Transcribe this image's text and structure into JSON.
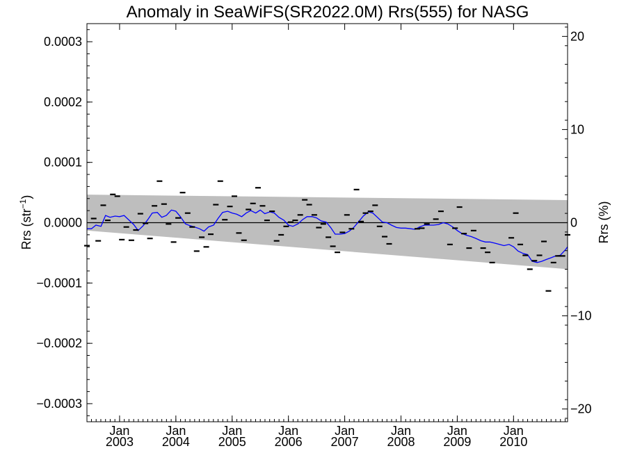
{
  "chart_data": {
    "type": "line",
    "title": "Anomaly in SeaWiFS(SR2022.0M) Rrs(555) for NASG",
    "ylabel": "Rrs (str",
    "ylabel_sup": "−1",
    "ylabel_close": ")",
    "y2label": "Rrs (%)",
    "xlabel": "",
    "xlim": [
      2002.42,
      2010.96
    ],
    "ylim": [
      -0.00033,
      0.00033
    ],
    "y2lim": [
      -21.37,
      21.37
    ],
    "grid": false,
    "legend": "none",
    "colors": {
      "line": "#0000ff",
      "band": "#bebebe",
      "points": "#000000",
      "zero": "#000000"
    },
    "y_ticks": [
      {
        "value": 0.0003,
        "label": "0.0003"
      },
      {
        "value": 0.0002,
        "label": "0.0002"
      },
      {
        "value": 0.0001,
        "label": "0.0001"
      },
      {
        "value": 0.0,
        "label": "0.0000"
      },
      {
        "value": -0.0001,
        "label": "−0.0001"
      },
      {
        "value": -0.0002,
        "label": "−0.0002"
      },
      {
        "value": -0.0003,
        "label": "−0.0003"
      }
    ],
    "y2_ticks": [
      {
        "value": 20,
        "label": "20"
      },
      {
        "value": 10,
        "label": "10"
      },
      {
        "value": 0,
        "label": "0"
      },
      {
        "value": -10,
        "label": "−10"
      },
      {
        "value": -20,
        "label": "−20"
      }
    ],
    "x_ticks": [
      {
        "value": 2003.0,
        "month": "Jan",
        "year": "2003"
      },
      {
        "value": 2004.0,
        "month": "Jan",
        "year": "2004"
      },
      {
        "value": 2005.0,
        "month": "Jan",
        "year": "2005"
      },
      {
        "value": 2006.0,
        "month": "Jan",
        "year": "2006"
      },
      {
        "value": 2007.0,
        "month": "Jan",
        "year": "2007"
      },
      {
        "value": 2008.0,
        "month": "Jan",
        "year": "2008"
      },
      {
        "value": 2009.0,
        "month": "Jan",
        "year": "2009"
      },
      {
        "value": 2010.0,
        "month": "Jan",
        "year": "2010"
      }
    ],
    "confidence_band": {
      "upper": [
        [
          2002.42,
          4.65e-05
        ],
        [
          2010.96,
          3.75e-05
        ]
      ],
      "lower": [
        [
          2002.42,
          -1.3e-05
        ],
        [
          2010.96,
          -7.7e-05
        ]
      ]
    },
    "series": [
      {
        "type": "scatter",
        "values": [
          [
            2002.42,
            -3.8e-05
          ],
          [
            2002.54,
            7e-06
          ],
          [
            2002.62,
            -3e-05
          ],
          [
            2002.71,
            2.9e-05
          ],
          [
            2002.79,
            4e-06
          ],
          [
            2002.88,
            4.7e-05
          ],
          [
            2002.96,
            4.4e-05
          ],
          [
            2003.04,
            -2.8e-05
          ],
          [
            2003.12,
            -7e-06
          ],
          [
            2003.21,
            -2.9e-05
          ],
          [
            2003.29,
            -1.2e-05
          ],
          [
            2003.37,
            1.5e-05
          ],
          [
            2003.46,
            -1e-06
          ],
          [
            2003.54,
            -2.6e-05
          ],
          [
            2003.62,
            2.8e-05
          ],
          [
            2003.71,
            6.9e-05
          ],
          [
            2003.79,
            3.1e-05
          ],
          [
            2003.87,
            -2e-06
          ],
          [
            2003.96,
            -3.2e-05
          ],
          [
            2004.04,
            8e-06
          ],
          [
            2004.12,
            5e-05
          ],
          [
            2004.21,
            1.6e-05
          ],
          [
            2004.29,
            -7e-06
          ],
          [
            2004.37,
            -4.7e-05
          ],
          [
            2004.46,
            -2.4e-05
          ],
          [
            2004.54,
            -4e-05
          ],
          [
            2004.62,
            -1.9e-05
          ],
          [
            2004.71,
            3e-05
          ],
          [
            2004.79,
            6.9e-05
          ],
          [
            2004.87,
            5e-06
          ],
          [
            2004.96,
            2.7e-05
          ],
          [
            2005.04,
            4.4e-05
          ],
          [
            2005.12,
            -1.7e-05
          ],
          [
            2005.21,
            -2.9e-05
          ],
          [
            2005.29,
            2.2e-05
          ],
          [
            2005.37,
            3.2e-05
          ],
          [
            2005.46,
            5.8e-05
          ],
          [
            2005.54,
            2.8e-05
          ],
          [
            2005.62,
            4e-06
          ],
          [
            2005.71,
            1.9e-05
          ],
          [
            2005.79,
            -3e-05
          ],
          [
            2005.87,
            -2e-05
          ],
          [
            2005.96,
            -6e-06
          ],
          [
            2006.04,
            1e-06
          ],
          [
            2006.12,
            4e-06
          ],
          [
            2006.21,
            1.3e-05
          ],
          [
            2006.29,
            3.8e-05
          ],
          [
            2006.37,
            3e-05
          ],
          [
            2006.46,
            1.3e-05
          ],
          [
            2006.54,
            -8e-06
          ],
          [
            2006.62,
            -2e-06
          ],
          [
            2006.71,
            -2.4e-05
          ],
          [
            2006.79,
            -3.9e-05
          ],
          [
            2006.87,
            -4.9e-05
          ],
          [
            2006.96,
            -1.6e-05
          ],
          [
            2007.04,
            1.3e-05
          ],
          [
            2007.12,
            -1e-05
          ],
          [
            2007.21,
            5.5e-05
          ],
          [
            2007.29,
            2e-06
          ],
          [
            2007.37,
            1.6e-05
          ],
          [
            2007.46,
            1.9e-05
          ],
          [
            2007.54,
            2.9e-05
          ],
          [
            2007.62,
            -6e-06
          ],
          [
            2007.71,
            -2.3e-05
          ],
          [
            2007.79,
            -3.5e-05
          ],
          [
            2008.29,
            -1e-05
          ],
          [
            2008.37,
            -9e-06
          ],
          [
            2008.46,
            -2e-06
          ],
          [
            2008.62,
            6e-06
          ],
          [
            2008.71,
            1.9e-05
          ],
          [
            2008.87,
            -3.6e-05
          ],
          [
            2008.96,
            -9e-06
          ],
          [
            2009.04,
            2.6e-05
          ],
          [
            2009.12,
            -1.8e-05
          ],
          [
            2009.21,
            -4.2e-05
          ],
          [
            2009.29,
            -1.3e-05
          ],
          [
            2009.46,
            -4.2e-05
          ],
          [
            2009.54,
            -4.9e-05
          ],
          [
            2009.62,
            -6.6e-05
          ],
          [
            2009.96,
            -2.5e-05
          ],
          [
            2010.04,
            1.6e-05
          ],
          [
            2010.12,
            -3.6e-05
          ],
          [
            2010.21,
            -5.4e-05
          ],
          [
            2010.29,
            -7.7e-05
          ],
          [
            2010.37,
            -6.3e-05
          ],
          [
            2010.46,
            -5.4e-05
          ],
          [
            2010.54,
            -3.1e-05
          ],
          [
            2010.62,
            -0.000113
          ],
          [
            2010.71,
            -6.6e-05
          ],
          [
            2010.79,
            -5.5e-05
          ],
          [
            2010.87,
            -5.5e-05
          ],
          [
            2010.96,
            -2e-05
          ]
        ]
      },
      {
        "type": "line",
        "values": [
          [
            2002.42,
            -1e-05
          ],
          [
            2002.5,
            -1e-05
          ],
          [
            2002.58,
            -4e-06
          ],
          [
            2002.67,
            -6e-06
          ],
          [
            2002.75,
            1.2e-05
          ],
          [
            2002.83,
            9e-06
          ],
          [
            2002.92,
            1.1e-05
          ],
          [
            2003.0,
            1e-05
          ],
          [
            2003.08,
            1.2e-05
          ],
          [
            2003.17,
            4e-06
          ],
          [
            2003.25,
            -3e-06
          ],
          [
            2003.33,
            -1.3e-05
          ],
          [
            2003.42,
            -5e-06
          ],
          [
            2003.5,
            5e-06
          ],
          [
            2003.58,
            1.6e-05
          ],
          [
            2003.67,
            1.7e-05
          ],
          [
            2003.75,
            9e-06
          ],
          [
            2003.83,
            1.2e-05
          ],
          [
            2003.92,
            2.1e-05
          ],
          [
            2004.0,
            1.9e-05
          ],
          [
            2004.08,
            1e-05
          ],
          [
            2004.17,
            -2e-06
          ],
          [
            2004.25,
            -5e-06
          ],
          [
            2004.33,
            -7e-06
          ],
          [
            2004.42,
            -1e-05
          ],
          [
            2004.5,
            -1.4e-05
          ],
          [
            2004.58,
            -7e-06
          ],
          [
            2004.67,
            -4e-06
          ],
          [
            2004.75,
            7e-06
          ],
          [
            2004.83,
            1.7e-05
          ],
          [
            2004.92,
            1.9e-05
          ],
          [
            2005.0,
            1.6e-05
          ],
          [
            2005.08,
            1.4e-05
          ],
          [
            2005.17,
            1e-05
          ],
          [
            2005.25,
            1.6e-05
          ],
          [
            2005.33,
            2e-05
          ],
          [
            2005.42,
            1.6e-05
          ],
          [
            2005.5,
            2.1e-05
          ],
          [
            2005.58,
            1.5e-05
          ],
          [
            2005.67,
            1.8e-05
          ],
          [
            2005.75,
            1.6e-05
          ],
          [
            2005.83,
            9e-06
          ],
          [
            2005.92,
            4e-06
          ],
          [
            2006.0,
            -4e-06
          ],
          [
            2006.08,
            -6e-06
          ],
          [
            2006.17,
            -2e-06
          ],
          [
            2006.25,
            5e-06
          ],
          [
            2006.33,
            1e-05
          ],
          [
            2006.42,
            1e-05
          ],
          [
            2006.5,
            8e-06
          ],
          [
            2006.58,
            3e-06
          ],
          [
            2006.67,
            1e-06
          ],
          [
            2006.75,
            -8e-06
          ],
          [
            2006.83,
            -1.9e-05
          ],
          [
            2006.92,
            -1.9e-05
          ],
          [
            2007.0,
            -1.8e-05
          ],
          [
            2007.08,
            -1.4e-05
          ],
          [
            2007.17,
            -7e-06
          ],
          [
            2007.25,
            2e-06
          ],
          [
            2007.33,
            1.1e-05
          ],
          [
            2007.42,
            1.8e-05
          ],
          [
            2007.5,
            1.6e-05
          ],
          [
            2007.58,
            9e-06
          ],
          [
            2007.67,
            1e-06
          ],
          [
            2007.75,
            0.0
          ],
          [
            2007.83,
            -4e-06
          ],
          [
            2007.92,
            -8e-06
          ],
          [
            2008.0,
            -9e-06
          ],
          [
            2008.08,
            -9e-06
          ],
          [
            2008.17,
            -1e-05
          ],
          [
            2008.25,
            -1.1e-05
          ],
          [
            2008.33,
            -7e-06
          ],
          [
            2008.42,
            -4e-06
          ],
          [
            2008.5,
            -4e-06
          ],
          [
            2008.58,
            -4e-06
          ],
          [
            2008.67,
            -3e-06
          ],
          [
            2008.75,
            0.0
          ],
          [
            2008.83,
            -2e-06
          ],
          [
            2008.92,
            -7e-06
          ],
          [
            2009.0,
            -1.3e-05
          ],
          [
            2009.08,
            -1.8e-05
          ],
          [
            2009.17,
            -2.1e-05
          ],
          [
            2009.25,
            -2.3e-05
          ],
          [
            2009.33,
            -2.6e-05
          ],
          [
            2009.42,
            -3e-05
          ],
          [
            2009.5,
            -3.2e-05
          ],
          [
            2009.58,
            -3.2e-05
          ],
          [
            2009.67,
            -3.4e-05
          ],
          [
            2009.75,
            -3.6e-05
          ],
          [
            2009.83,
            -3.8e-05
          ],
          [
            2009.92,
            -3.6e-05
          ],
          [
            2010.0,
            -4e-05
          ],
          [
            2010.08,
            -4.7e-05
          ],
          [
            2010.17,
            -5.1e-05
          ],
          [
            2010.25,
            -5.3e-05
          ],
          [
            2010.33,
            -6.4e-05
          ],
          [
            2010.42,
            -6.6e-05
          ],
          [
            2010.5,
            -6.4e-05
          ],
          [
            2010.58,
            -6.1e-05
          ],
          [
            2010.67,
            -5.8e-05
          ],
          [
            2010.75,
            -5.5e-05
          ],
          [
            2010.83,
            -5.4e-05
          ],
          [
            2010.92,
            -4.5e-05
          ],
          [
            2010.96,
            -4e-05
          ]
        ]
      }
    ]
  }
}
